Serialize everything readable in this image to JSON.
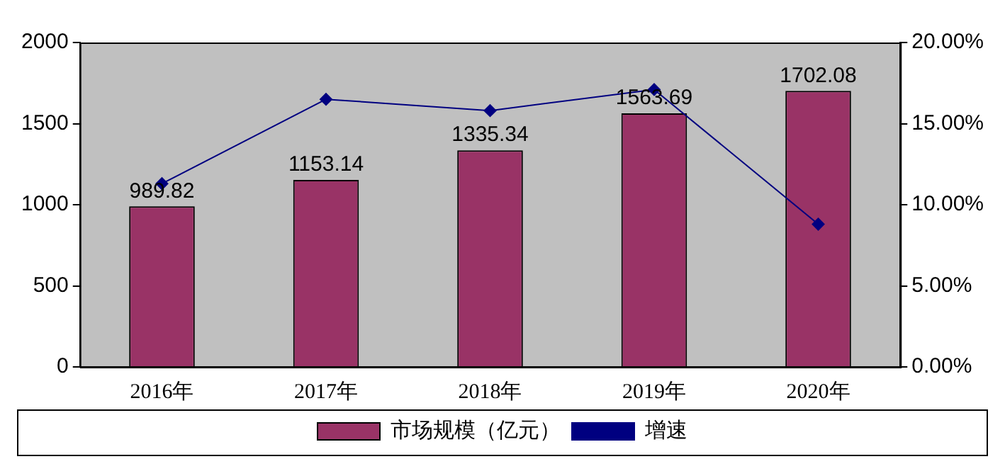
{
  "chart_data": {
    "type": "bar",
    "categories": [
      "2016年",
      "2017年",
      "2018年",
      "2019年",
      "2020年"
    ],
    "series": [
      {
        "name": "市场规模（亿元）",
        "color": "#993366",
        "values": [
          989.82,
          1153.14,
          1335.34,
          1563.69,
          1702.08
        ],
        "value_labels": [
          "989.82",
          "1153.14",
          "1335.34",
          "1563.69",
          "1702.08"
        ]
      },
      {
        "name": "增速",
        "type": "line",
        "axis": "y2",
        "color": "#000080",
        "values": [
          11.3,
          16.5,
          15.8,
          17.1,
          8.8
        ]
      }
    ],
    "ylim": [
      0,
      2000
    ],
    "yticks": [
      0,
      500,
      1000,
      1500,
      2000
    ],
    "y2lim": [
      0,
      20
    ],
    "y2ticks": [
      {
        "value": 0,
        "label": "0.00%"
      },
      {
        "value": 5,
        "label": "5.00%"
      },
      {
        "value": 10,
        "label": "10.00%"
      },
      {
        "value": 15,
        "label": "15.00%"
      },
      {
        "value": 20,
        "label": "20.00%"
      }
    ],
    "grid": false,
    "legend": "bottom",
    "marker": "diamond",
    "line_style": "solid"
  }
}
